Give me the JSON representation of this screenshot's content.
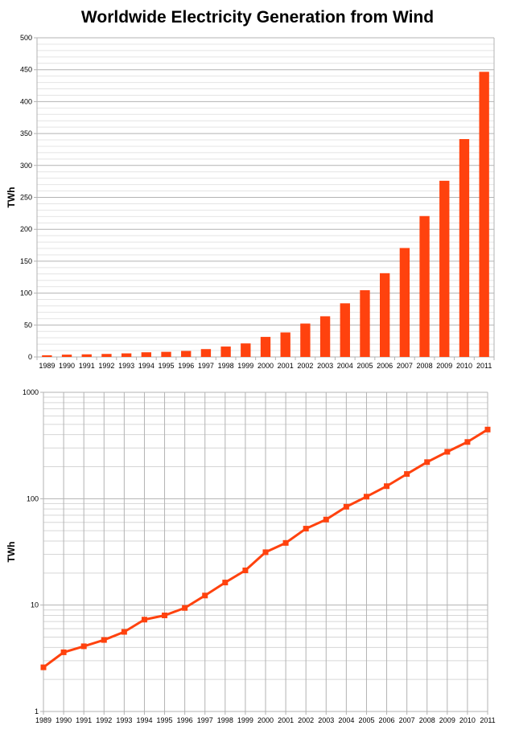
{
  "title": "Worldwide Electricity Generation from Wind",
  "chart_data": [
    {
      "type": "bar",
      "scale": "linear",
      "title": "Worldwide Electricity Generation from Wind",
      "xlabel": "",
      "ylabel": "TWh",
      "ylim": [
        0,
        500
      ],
      "yticks": [
        "0",
        "50",
        "100",
        "150",
        "200",
        "250",
        "300",
        "350",
        "400",
        "450",
        "500"
      ],
      "grid": true,
      "legend": "none",
      "color": "#ff420e",
      "categories": [
        "1989",
        "1990",
        "1991",
        "1992",
        "1993",
        "1994",
        "1995",
        "1996",
        "1997",
        "1998",
        "1999",
        "2000",
        "2001",
        "2002",
        "2003",
        "2004",
        "2005",
        "2006",
        "2007",
        "2008",
        "2009",
        "2010",
        "2011"
      ],
      "values": [
        2.6,
        3.6,
        4.1,
        4.7,
        5.6,
        7.3,
        8.0,
        9.4,
        12.3,
        16.3,
        21.2,
        31.4,
        38.4,
        52.3,
        63.7,
        84.0,
        104.5,
        131.2,
        170.7,
        220.7,
        276.0,
        341.3,
        446.7
      ]
    },
    {
      "type": "line",
      "scale": "log",
      "xlabel": "",
      "ylabel": "TWh",
      "ylim": [
        1,
        1000
      ],
      "yticks": [
        "1",
        "10",
        "100",
        "1000"
      ],
      "grid": true,
      "legend": "none",
      "color": "#ff420e",
      "marker": "square",
      "categories": [
        "1989",
        "1990",
        "1991",
        "1992",
        "1993",
        "1994",
        "1995",
        "1996",
        "1997",
        "1998",
        "1999",
        "2000",
        "2001",
        "2002",
        "2003",
        "2004",
        "2005",
        "2006",
        "2007",
        "2008",
        "2009",
        "2010",
        "2011"
      ],
      "values": [
        2.6,
        3.6,
        4.1,
        4.7,
        5.6,
        7.3,
        8.0,
        9.4,
        12.3,
        16.3,
        21.2,
        31.4,
        38.4,
        52.3,
        63.7,
        84.0,
        104.5,
        131.2,
        170.7,
        220.7,
        276.0,
        341.3,
        446.7
      ]
    }
  ]
}
